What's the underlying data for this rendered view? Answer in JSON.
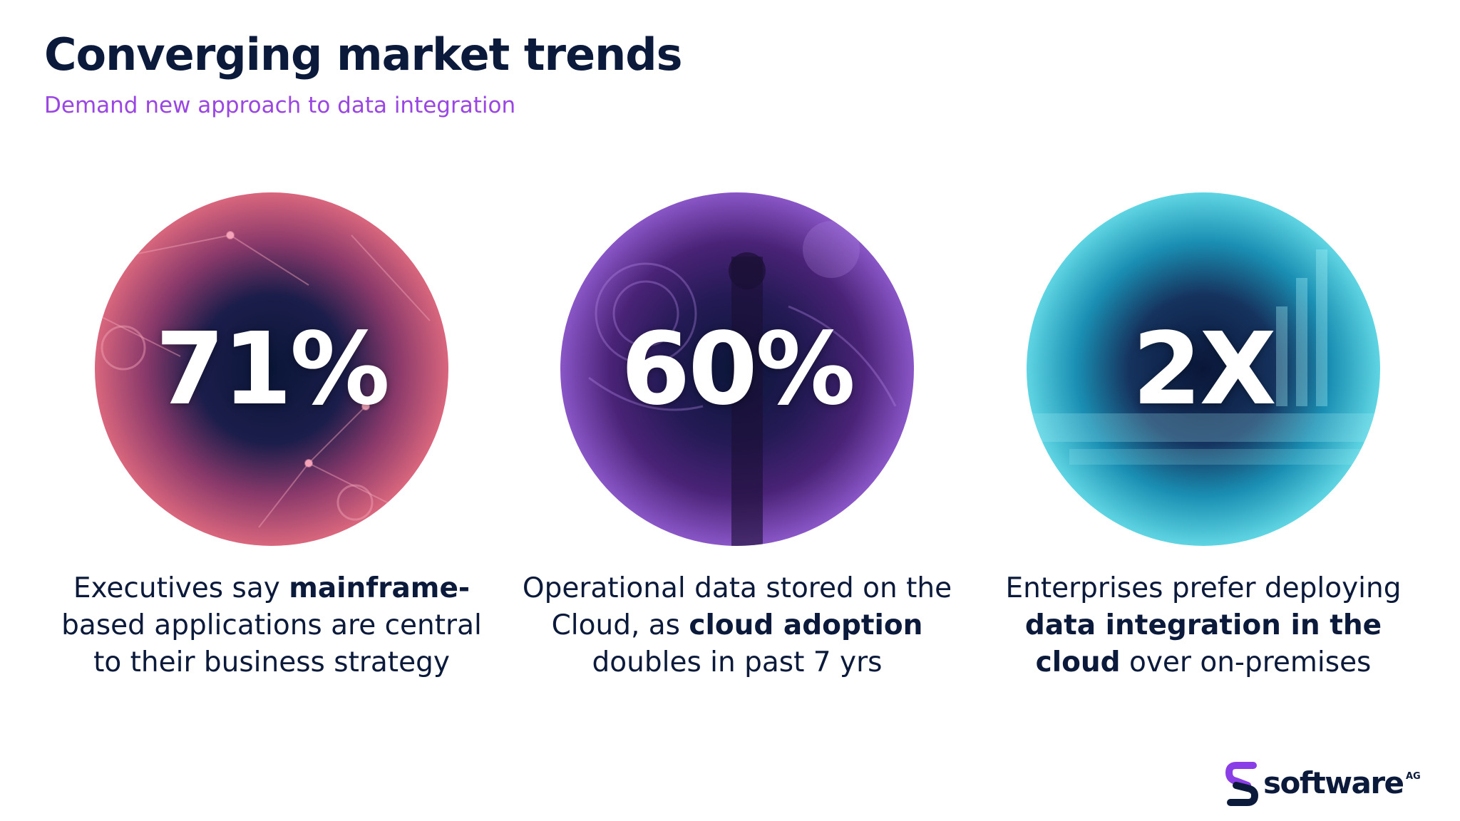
{
  "slide": {
    "title": "Converging market trends",
    "subtitle": "Demand new approach to data integration"
  },
  "stats": [
    {
      "value": "71%",
      "desc_before": "Executives say ",
      "desc_bold": "mainframe-",
      "desc_after": "based applications are central to their business strategy",
      "icon": "circle-photo-server-network",
      "colors": [
        "#d9667d",
        "#8b3a6b",
        "#0a1638"
      ]
    },
    {
      "value": "60%",
      "desc_before": "Operational data stored on the Cloud, as ",
      "desc_bold": "cloud adoption",
      "desc_after": " doubles in past 7 yrs",
      "icon": "circle-photo-person-cloud",
      "colors": [
        "#8a56c7",
        "#4a2377",
        "#0a1638"
      ]
    },
    {
      "value": "2X",
      "desc_before": "Enterprises prefer deploying ",
      "desc_bold": "data integration in the cloud",
      "desc_after": " over on-premises",
      "icon": "circle-photo-tablet-charts",
      "colors": [
        "#5fd5e3",
        "#1a8fb3",
        "#0a1638"
      ]
    }
  ],
  "logo": {
    "word": "software",
    "superscript": "AG",
    "icon": "software-ag-s-icon",
    "colors": [
      "#8a3ee6",
      "#0b1a3b"
    ]
  }
}
